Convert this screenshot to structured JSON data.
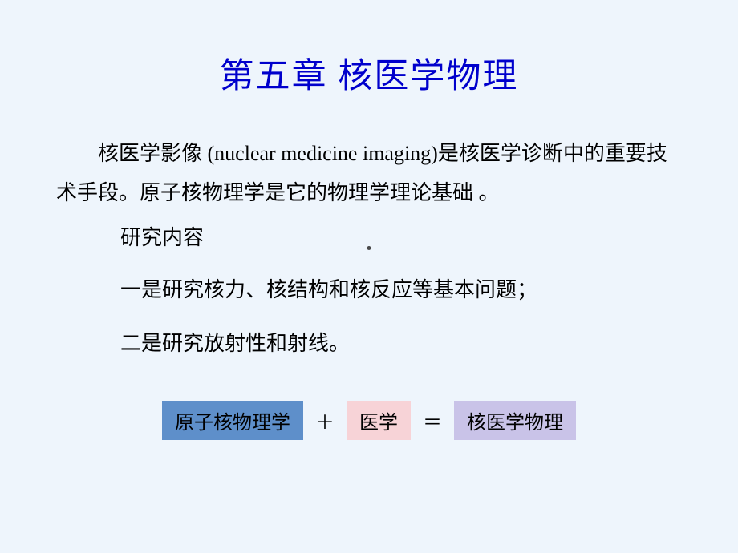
{
  "slide": {
    "title": "第五章   核医学物理",
    "paragraph_part1": "核医学影像 ",
    "paragraph_english": "(nuclear medicine imaging)",
    "paragraph_part2": "是核医学诊断中的重要技术手段。原子核物理学是它的物理学理论基础 。",
    "subheading": "研究内容",
    "line1": "一是研究核力、核结构和核反应等基本问题；",
    "line2": "二是研究放射性和射线。",
    "equation": {
      "box1": {
        "label": "原子核物理学",
        "bg_color": "#5e8fca"
      },
      "op1": "＋",
      "box2": {
        "label": "医学",
        "bg_color": "#f7d3d7"
      },
      "op2": "＝",
      "box3": {
        "label": "核医学物理",
        "bg_color": "#c9c3e8"
      }
    }
  },
  "style": {
    "background_color": "#eef5fc",
    "title_color": "#0000cc",
    "title_fontsize": 43,
    "body_fontsize": 26,
    "body_color": "#000000",
    "font_family_cjk": "SimSun",
    "font_family_latin": "Times New Roman"
  }
}
